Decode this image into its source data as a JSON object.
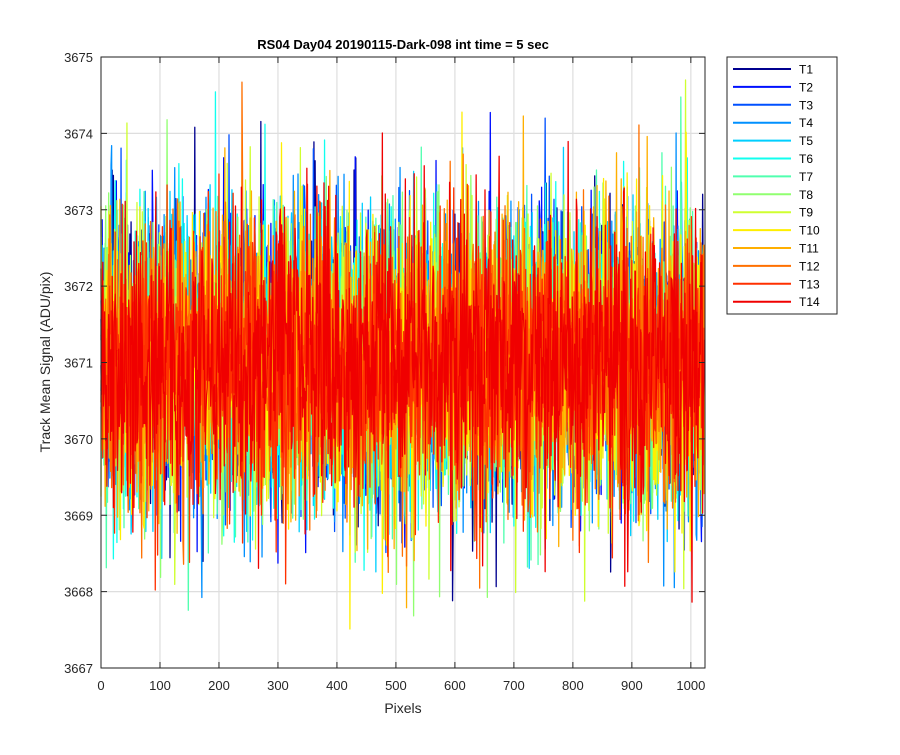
{
  "chart_data": {
    "type": "line",
    "title": "RS04 Day04 20190115-Dark-098 int time = 5 sec",
    "xlabel": "Pixels",
    "ylabel": "Track Mean Signal (ADU/pix)",
    "xlim": [
      0,
      1024
    ],
    "ylim": [
      3667,
      3675
    ],
    "xticks": [
      0,
      100,
      200,
      300,
      400,
      500,
      600,
      700,
      800,
      900,
      1000
    ],
    "yticks": [
      3667,
      3668,
      3669,
      3670,
      3671,
      3672,
      3673,
      3674,
      3675
    ],
    "grid": true,
    "legend_position": "outside-top-right",
    "n_points": 1024,
    "series": [
      {
        "name": "T1",
        "color": "#00008f",
        "mean": 3671.0,
        "spread": 0.95
      },
      {
        "name": "T2",
        "color": "#0010ff",
        "mean": 3671.0,
        "spread": 0.95
      },
      {
        "name": "T3",
        "color": "#0050ff",
        "mean": 3671.0,
        "spread": 0.95
      },
      {
        "name": "T4",
        "color": "#0090ff",
        "mean": 3671.0,
        "spread": 0.95
      },
      {
        "name": "T5",
        "color": "#00cfff",
        "mean": 3671.0,
        "spread": 0.95
      },
      {
        "name": "T6",
        "color": "#10ffef",
        "mean": 3671.0,
        "spread": 0.95
      },
      {
        "name": "T7",
        "color": "#50ffaf",
        "mean": 3671.0,
        "spread": 0.95
      },
      {
        "name": "T8",
        "color": "#90ff70",
        "mean": 3671.0,
        "spread": 0.95
      },
      {
        "name": "T9",
        "color": "#cfff30",
        "mean": 3671.0,
        "spread": 0.95
      },
      {
        "name": "T10",
        "color": "#ffef00",
        "mean": 3671.0,
        "spread": 0.95
      },
      {
        "name": "T11",
        "color": "#ffaf00",
        "mean": 3671.0,
        "spread": 0.95
      },
      {
        "name": "T12",
        "color": "#ff7000",
        "mean": 3671.0,
        "spread": 0.95
      },
      {
        "name": "T13",
        "color": "#ff3000",
        "mean": 3671.0,
        "spread": 0.95
      },
      {
        "name": "T14",
        "color": "#f00000",
        "mean": 3671.0,
        "spread": 0.95
      }
    ]
  }
}
